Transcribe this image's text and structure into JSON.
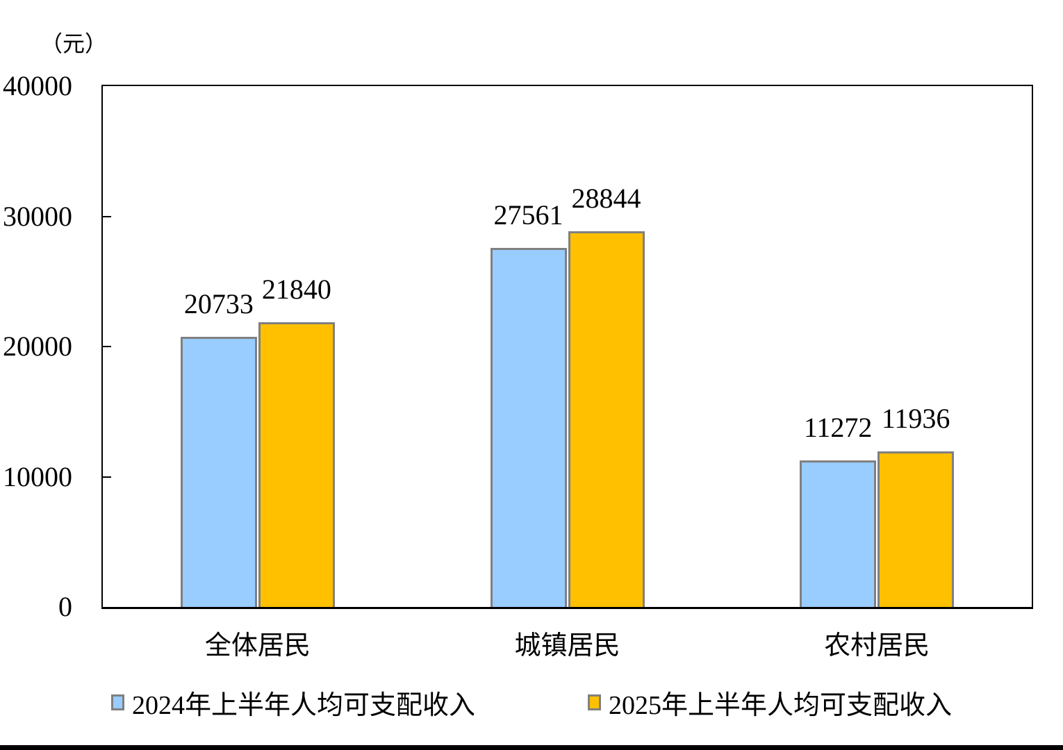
{
  "chart_data": {
    "type": "bar",
    "title": "",
    "unit_label": "（元）",
    "categories": [
      "全体居民",
      "城镇居民",
      "农村居民"
    ],
    "series": [
      {
        "name": "2024年上半年人均可支配收入",
        "color": "#99CCFF",
        "values": [
          20733,
          27561,
          11272
        ]
      },
      {
        "name": "2025年上半年人均可支配收入",
        "color": "#FFC000",
        "values": [
          21840,
          28844,
          11936
        ]
      }
    ],
    "ylim": [
      0,
      40000
    ],
    "ytick_interval": 10000,
    "yticks": [
      "0",
      "10000",
      "20000",
      "30000",
      "40000"
    ],
    "bar_border_color": "#808080",
    "axis_color": "#000000",
    "grid": false,
    "legend_position": "bottom",
    "bar_value_labels": true
  }
}
